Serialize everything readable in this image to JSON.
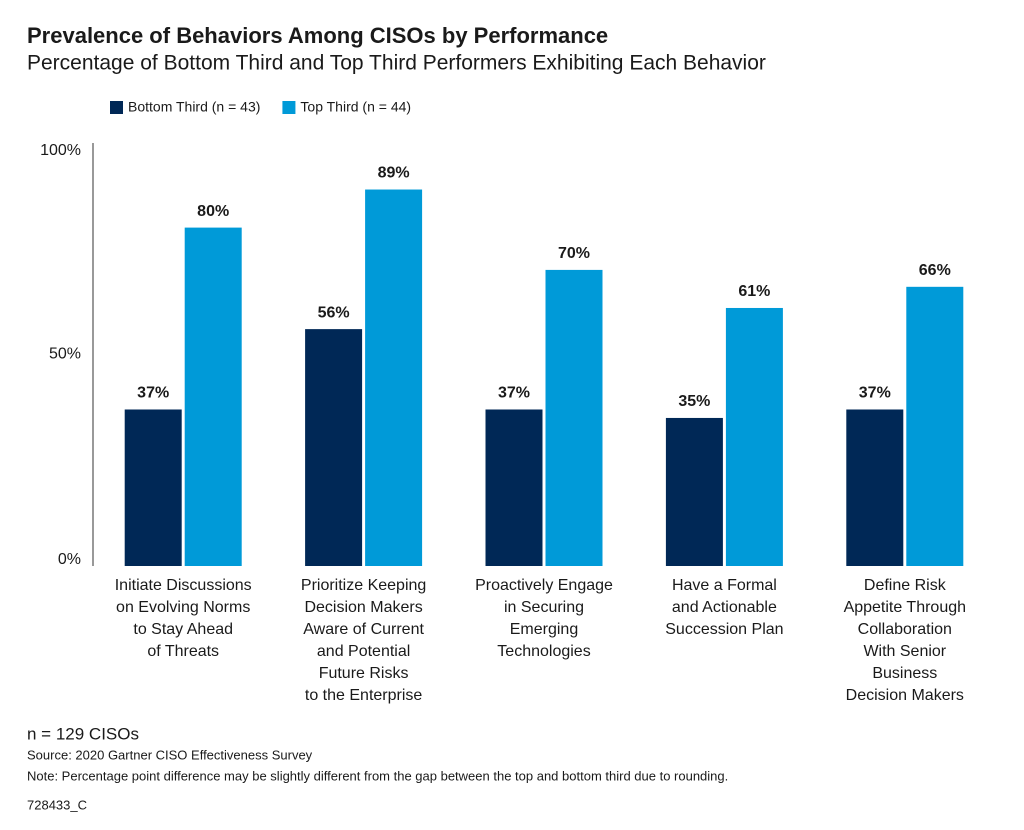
{
  "chart_data": {
    "type": "bar",
    "title": "Prevalence of Behaviors Among CISOs by Performance",
    "subtitle": "Percentage of Bottom Third and Top Third Performers Exhibiting Each Behavior",
    "categories": [
      "Initiate Discussions\non Evolving Norms\nto Stay Ahead\nof Threats",
      "Prioritize Keeping\nDecision Makers\nAware of Current\nand Potential\nFuture Risks\nto the Enterprise",
      "Proactively Engage\nin Securing\nEmerging\nTechnologies",
      "Have a Formal\nand Actionable\nSuccession Plan",
      "Define Risk\nAppetite Through\nCollaboration\nWith Senior\nBusiness\nDecision Makers"
    ],
    "series": [
      {
        "name": "Bottom Third (n = 43)",
        "color": "#002856",
        "values": [
          37,
          56,
          37,
          35,
          37
        ],
        "value_labels": [
          "37%",
          "56%",
          "37%",
          "35%",
          "37%"
        ]
      },
      {
        "name": "Top Third (n = 44)",
        "color": "#009ad8",
        "values": [
          80,
          89,
          70,
          61,
          66
        ],
        "value_labels": [
          "80%",
          "89%",
          "70%",
          "61%",
          "66%"
        ]
      }
    ],
    "ylim": [
      0,
      100
    ],
    "yticks": [
      {
        "value": 0,
        "label": "0%"
      },
      {
        "value": 50,
        "label": "50%"
      },
      {
        "value": 100,
        "label": "100%"
      }
    ],
    "grid": false,
    "footnotes": {
      "sample": "n = 129 CISOs",
      "source": "Source: 2020 Gartner CISO Effectiveness Survey",
      "note": "Note: Percentage point difference may be slightly different from the gap between the top and bottom third due to rounding.",
      "id": "728433_C"
    }
  }
}
